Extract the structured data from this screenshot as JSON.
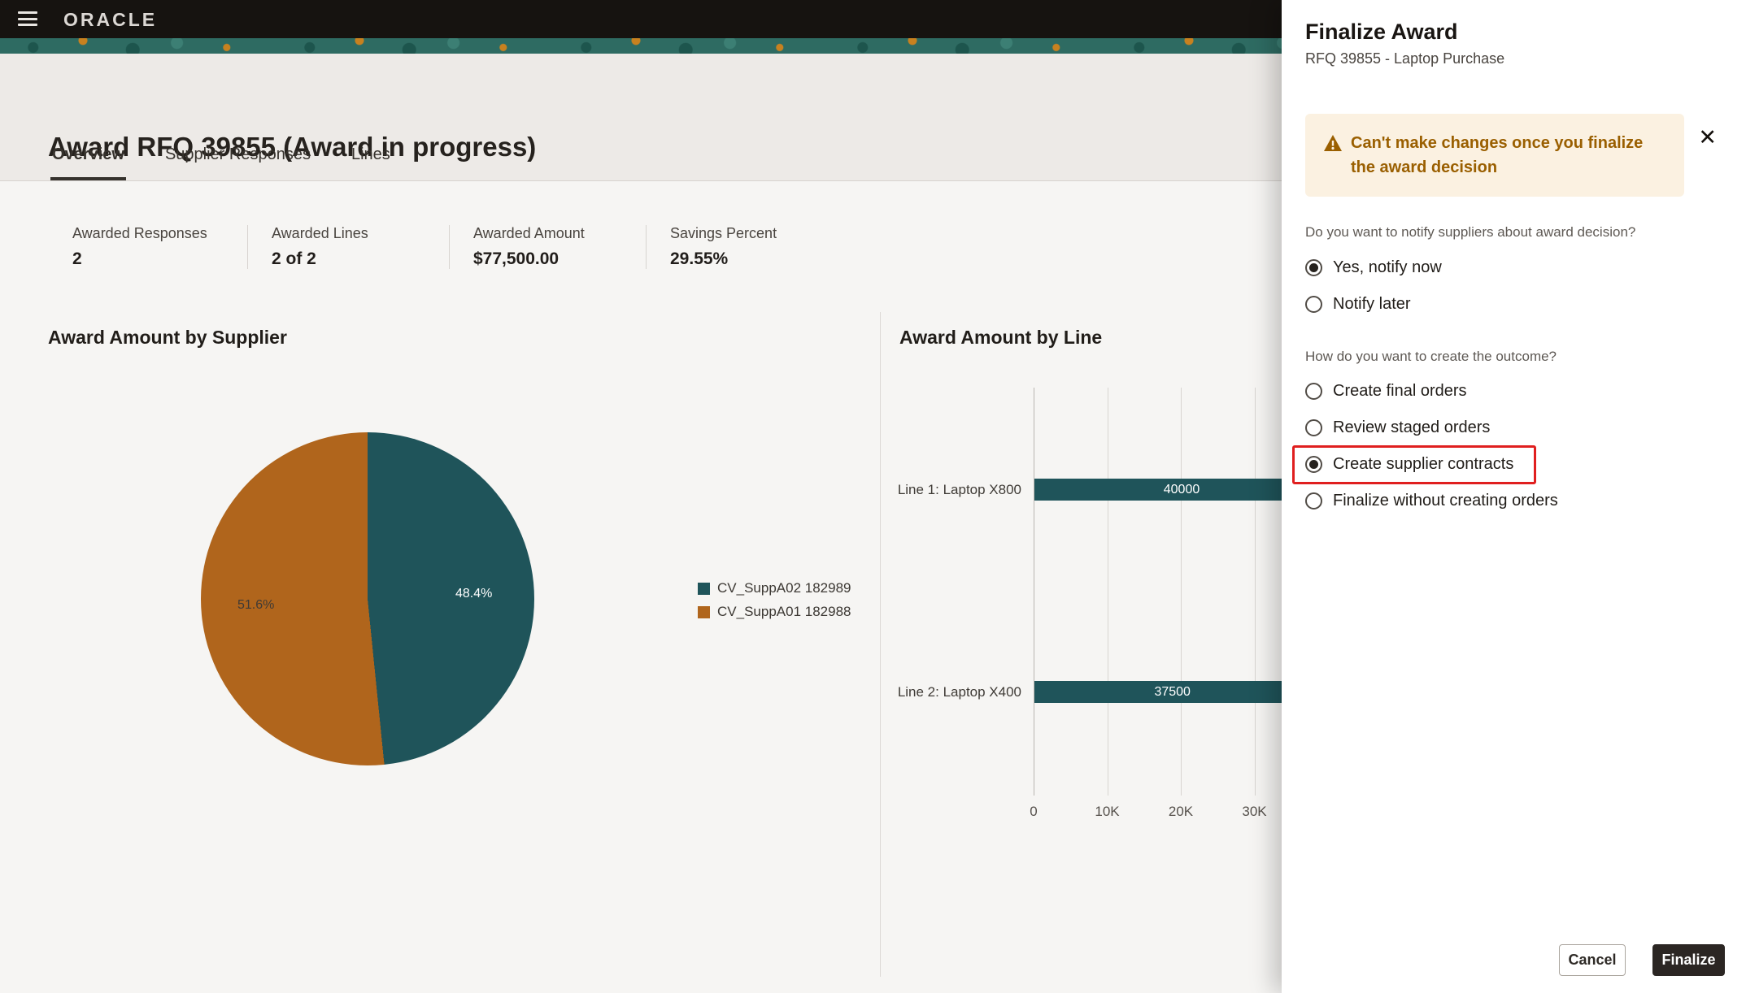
{
  "topbar": {
    "brand": "ORACLE"
  },
  "page": {
    "title": "Award RFQ 39855 (Award in progress)",
    "tabs": [
      {
        "label": "Overview",
        "active": true
      },
      {
        "label": "Supplier Responses",
        "active": false
      },
      {
        "label": "Lines",
        "active": false
      }
    ],
    "stats": [
      {
        "label": "Awarded Responses",
        "value": "2"
      },
      {
        "label": "Awarded Lines",
        "value": "2 of 2"
      },
      {
        "label": "Awarded Amount",
        "value": "$77,500.00"
      },
      {
        "label": "Savings Percent",
        "value": "29.55%"
      }
    ]
  },
  "chart_data": [
    {
      "type": "pie",
      "title": "Award Amount by Supplier",
      "slices": [
        {
          "label": "CV_SuppA02 182989",
          "percent": 48.4,
          "pct_label": "48.4%",
          "color": "#1f545a"
        },
        {
          "label": "CV_SuppA01 182988",
          "percent": 51.6,
          "pct_label": "51.6%",
          "color": "#b0651c"
        }
      ],
      "legend_position": "right"
    },
    {
      "type": "bar",
      "title": "Award Amount by Line",
      "orientation": "horizontal",
      "categories": [
        "Line 1: Laptop X800",
        "Line 2: Laptop X400"
      ],
      "values": [
        40000,
        37500
      ],
      "bar_labels": [
        "40000",
        "37500"
      ],
      "xticks": [
        "0",
        "10K",
        "20K",
        "30K"
      ],
      "xlim": [
        0,
        40000
      ],
      "bar_color": "#1f545a",
      "grid": true
    }
  ],
  "panel": {
    "title": "Finalize Award",
    "subtitle": "RFQ 39855 - Laptop Purchase",
    "close_icon": "✕",
    "warning": "Can't make changes once you finalize the award decision",
    "question1": "Do you want to notify suppliers about award decision?",
    "options1": [
      {
        "label": "Yes, notify now",
        "selected": true
      },
      {
        "label": "Notify later",
        "selected": false
      }
    ],
    "question2": "How do you want to create the outcome?",
    "options2": [
      {
        "label": "Create final orders",
        "selected": false
      },
      {
        "label": "Review staged orders",
        "selected": false
      },
      {
        "label": "Create supplier contracts",
        "selected": true,
        "highlighted": true
      },
      {
        "label": "Finalize without creating orders",
        "selected": false
      }
    ],
    "cancel_label": "Cancel",
    "finalize_label": "Finalize"
  },
  "colors": {
    "teal": "#1f545a",
    "orange": "#b0651c",
    "warning_text": "#9a5f00",
    "warning_bg": "#fbf1e1",
    "highlight_red": "#e01f1f",
    "topbar_bg": "#161310",
    "finalize_btn": "#2b2623"
  }
}
